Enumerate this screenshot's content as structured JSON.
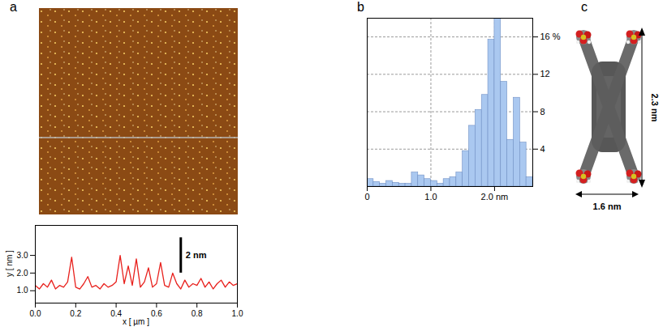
{
  "panels": [
    "a",
    "b",
    "c"
  ],
  "chart_data": [
    {
      "type": "line",
      "x_label": "x [ µm ]",
      "y_label": "y [ nm ]",
      "x": [
        0,
        0.02,
        0.04,
        0.06,
        0.08,
        0.1,
        0.12,
        0.14,
        0.16,
        0.18,
        0.2,
        0.22,
        0.24,
        0.26,
        0.28,
        0.3,
        0.32,
        0.34,
        0.36,
        0.38,
        0.4,
        0.42,
        0.44,
        0.46,
        0.48,
        0.5,
        0.52,
        0.54,
        0.56,
        0.58,
        0.6,
        0.62,
        0.64,
        0.66,
        0.68,
        0.7,
        0.72,
        0.74,
        0.76,
        0.78,
        0.8,
        0.82,
        0.84,
        0.86,
        0.88,
        0.9,
        0.92,
        0.94,
        0.96,
        0.98,
        1.0
      ],
      "values": [
        1.3,
        1.1,
        1.4,
        1.2,
        1.6,
        1.1,
        1.3,
        1.2,
        1.5,
        2.9,
        1.2,
        1.1,
        1.4,
        1.8,
        1.2,
        1.3,
        1.1,
        1.4,
        1.2,
        1.3,
        1.5,
        3.0,
        1.4,
        2.4,
        1.3,
        2.8,
        1.2,
        1.5,
        2.3,
        1.2,
        1.4,
        2.6,
        1.3,
        1.2,
        2.0,
        1.4,
        1.1,
        1.6,
        1.2,
        1.4,
        1.3,
        1.7,
        1.2,
        1.5,
        1.1,
        1.4,
        1.6,
        1.2,
        1.5,
        1.3,
        1.4
      ],
      "color": "#e8201c",
      "xlim": [
        0,
        1.0
      ],
      "xticks": [
        {
          "value": 0,
          "label": "0.0"
        },
        {
          "value": 0.2,
          "label": "0.2"
        },
        {
          "value": 0.4,
          "label": "0.4"
        },
        {
          "value": 0.6,
          "label": "0.6"
        },
        {
          "value": 0.8,
          "label": "0.8"
        },
        {
          "value": 1.0,
          "label": "1.0"
        }
      ],
      "ylim": [
        0.3,
        4.7
      ],
      "yticks": [
        {
          "value": 1,
          "label": "1.0"
        },
        {
          "value": 2,
          "label": "2.0"
        },
        {
          "value": 3,
          "label": "3.0"
        }
      ],
      "annotations": [
        {
          "text": "2 nm",
          "value": 2
        }
      ]
    },
    {
      "type": "histogram",
      "bins": [
        0,
        0.1,
        0.2,
        0.3,
        0.4,
        0.5,
        0.6,
        0.7,
        0.8,
        0.9,
        1.0,
        1.1,
        1.2,
        1.3,
        1.4,
        1.5,
        1.6,
        1.7,
        1.8,
        1.9,
        2.0,
        2.1,
        2.2,
        2.3,
        2.4,
        2.5,
        2.6
      ],
      "counts": [
        0.8,
        0.5,
        0.3,
        0.6,
        0.4,
        0.3,
        0.3,
        1.5,
        1.2,
        0.8,
        0.6,
        0.3,
        0.8,
        1.0,
        1.5,
        3.8,
        6.5,
        8.2,
        9.8,
        15.7,
        18,
        11.2,
        5.0,
        9.5,
        4.7,
        1.0
      ],
      "color": "#aac8f0",
      "xlim": [
        0,
        2.6
      ],
      "xticks": [
        0,
        {
          "value": 1,
          "label": "1.0"
        },
        {
          "value": 2,
          "label": "2.0 nm"
        }
      ],
      "ylim": [
        0,
        18
      ],
      "yticks": [
        4,
        8,
        12,
        {
          "value": 16,
          "label": "16 %"
        }
      ],
      "grid": true
    }
  ],
  "model": {
    "width_label": "1.6 nm",
    "height_label": "2.3 nm"
  }
}
